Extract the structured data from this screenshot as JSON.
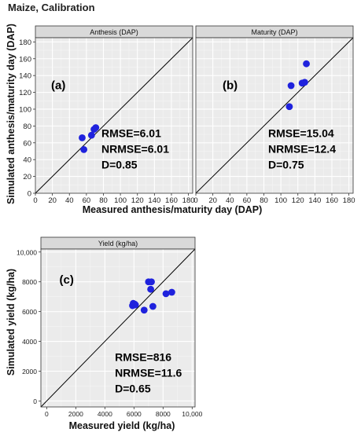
{
  "figure": {
    "title": "Maize, Calibration"
  },
  "chart_data": [
    {
      "type": "scatter",
      "panel_label": "(a)",
      "strip_title": "Anthesis (DAP)",
      "x_ticks": [
        "0",
        "20",
        "40",
        "60",
        "80",
        "100",
        "120",
        "140",
        "160",
        "180"
      ],
      "y_ticks": [
        "0",
        "20",
        "40",
        "60",
        "80",
        "100",
        "120",
        "140",
        "160",
        "180"
      ],
      "xlim": [
        0,
        185
      ],
      "ylim": [
        0,
        185
      ],
      "grid": true,
      "reference_line": "1:1",
      "points": [
        [
          55,
          66
        ],
        [
          57,
          52
        ],
        [
          66,
          69
        ],
        [
          69,
          76
        ],
        [
          71,
          78
        ]
      ],
      "stats": [
        "RMSE=6.01",
        "NRMSE=6.01",
        "D=0.85"
      ],
      "point_color": "#1f22dd"
    },
    {
      "type": "scatter",
      "panel_label": "(b)",
      "strip_title": "Maturity (DAP)",
      "x_ticks": [
        "0",
        "20",
        "40",
        "60",
        "80",
        "100",
        "120",
        "140",
        "160",
        "180"
      ],
      "y_ticks": [],
      "xlim": [
        0,
        185
      ],
      "ylim": [
        0,
        185
      ],
      "grid": true,
      "reference_line": "1:1",
      "points": [
        [
          110,
          103
        ],
        [
          112,
          128
        ],
        [
          125,
          131
        ],
        [
          128,
          132
        ],
        [
          130,
          154
        ]
      ],
      "stats": [
        "RMSE=15.04",
        "NRMSE=12.4",
        "D=0.75"
      ],
      "point_color": "#1f22dd"
    },
    {
      "type": "scatter",
      "panel_label": "(c)",
      "strip_title": "Yield (kg/ha)",
      "x_ticks": [
        "0",
        "2000",
        "4000",
        "6000",
        "8000",
        "10,000"
      ],
      "y_ticks": [
        "0",
        "2000",
        "4000",
        "6000",
        "8000",
        "10,000"
      ],
      "xlim": [
        -400,
        10200
      ],
      "ylim": [
        -400,
        10200
      ],
      "grid": true,
      "reference_line": "1:1",
      "points": [
        [
          5900,
          6400
        ],
        [
          5950,
          6550
        ],
        [
          6050,
          6500
        ],
        [
          6100,
          6450
        ],
        [
          6700,
          6100
        ],
        [
          7000,
          8000
        ],
        [
          7150,
          7500
        ],
        [
          7200,
          8000
        ],
        [
          7300,
          6350
        ],
        [
          8200,
          7200
        ],
        [
          8600,
          7300
        ]
      ],
      "stats": [
        "RMSE=816",
        "NRMSE=11.6",
        "D=0.65"
      ],
      "point_color": "#1f22dd"
    }
  ],
  "axes": {
    "top_ylabel": "Simulated anthesis/maturity day (DAP)",
    "top_xlabel": "Measured anthesis/maturity day (DAP)",
    "bottom_ylabel": "Simulated yield (kg/ha)",
    "bottom_xlabel": "Measured yield (kg/ha)"
  }
}
